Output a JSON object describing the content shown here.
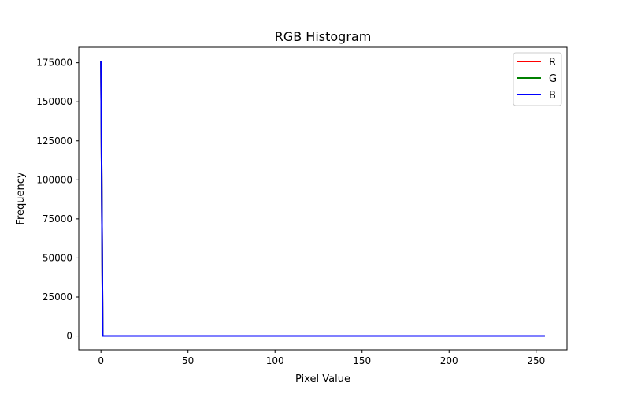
{
  "chart_data": {
    "type": "line",
    "title": "RGB Histogram",
    "xlabel": "Pixel Value",
    "ylabel": "Frequency",
    "xlim": [
      -12.75,
      267.75
    ],
    "ylim": [
      -8805,
      184905
    ],
    "xticks": [
      0,
      50,
      100,
      150,
      200,
      250
    ],
    "yticks": [
      0,
      25000,
      50000,
      75000,
      100000,
      125000,
      150000,
      175000
    ],
    "grid": false,
    "legend_position": "top-right",
    "x": [
      0,
      1,
      255
    ],
    "series": [
      {
        "name": "R",
        "color": "#ff0000",
        "values": [
          176100,
          0,
          0
        ]
      },
      {
        "name": "G",
        "color": "#008000",
        "values": [
          176100,
          0,
          0
        ]
      },
      {
        "name": "B",
        "color": "#0000ff",
        "values": [
          176100,
          0,
          0
        ]
      }
    ]
  }
}
